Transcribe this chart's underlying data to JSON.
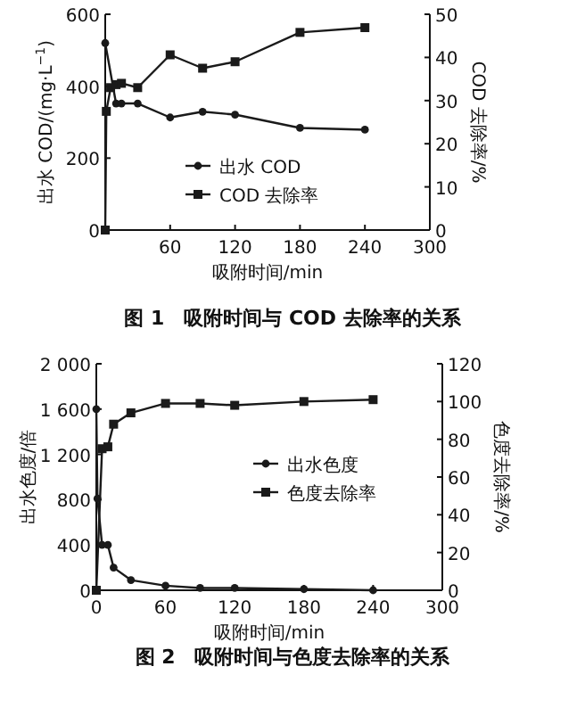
{
  "chart_data": [
    {
      "type": "line",
      "title": "图 1　吸附时间与 COD 去除率的关系",
      "xlabel": "吸附时间/min",
      "ylabel": "出水 COD/(mg·L$^{−1}$)",
      "y2label": "COD 去除率/%",
      "xlim": [
        0,
        300
      ],
      "xticks": [
        60,
        120,
        180,
        240,
        300
      ],
      "ylim": [
        0,
        600
      ],
      "yticks": [
        0,
        200,
        400,
        600
      ],
      "y2lim": [
        0,
        50
      ],
      "y2ticks": [
        0,
        10,
        20,
        30,
        40,
        50
      ],
      "legend": "bottom",
      "grid": false,
      "line_style": "solid",
      "series": [
        {
          "name": "出水 COD",
          "color": "#1a1a1a",
          "marker": "circle",
          "x": [
            0,
            10,
            15,
            30,
            60,
            90,
            120,
            180,
            240
          ],
          "values": [
            520,
            352,
            352,
            352,
            313,
            329,
            321,
            284,
            279
          ]
        },
        {
          "name": "COD 去除率",
          "color": "#1a1a1a",
          "marker": "square",
          "axis": "y2",
          "x": [
            0,
            1,
            5,
            10,
            15,
            30,
            60,
            90,
            120,
            180,
            240
          ],
          "values": [
            0,
            27.5,
            33,
            33.7,
            34,
            33,
            40.6,
            37.5,
            39,
            45.8,
            46.9
          ]
        }
      ]
    },
    {
      "type": "line",
      "title": "图 2　吸附时间与色度去除率的关系",
      "xlabel": "吸附时间/min",
      "ylabel": "出水色度/倍",
      "y2label": "色度去除率/%",
      "xlim": [
        0,
        300
      ],
      "xticks": [
        0,
        60,
        120,
        180,
        240,
        300
      ],
      "ylim": [
        0,
        2000
      ],
      "yticks": [
        0,
        400,
        800,
        {
          "value": 1200,
          "label": "1 200"
        },
        {
          "value": 1600,
          "label": "1 600"
        },
        {
          "value": 2000,
          "label": "2 000"
        }
      ],
      "y2lim": [
        0,
        120
      ],
      "y2ticks": [
        0,
        20,
        40,
        60,
        80,
        100,
        120
      ],
      "legend": "right",
      "grid": false,
      "line_style": "solid",
      "series": [
        {
          "name": "出水色度",
          "color": "#1a1a1a",
          "marker": "circle",
          "x": [
            0,
            1,
            5,
            10,
            15,
            30,
            60,
            90,
            120,
            180,
            240
          ],
          "values": [
            1600,
            810,
            400,
            400,
            200,
            90,
            40,
            20,
            20,
            10,
            0
          ]
        },
        {
          "name": "色度去除率",
          "color": "#1a1a1a",
          "marker": "square",
          "axis": "y2",
          "x": [
            0,
            5,
            10,
            15,
            30,
            60,
            90,
            120,
            180,
            240
          ],
          "values": [
            0,
            75,
            76,
            88,
            94,
            99,
            99,
            98,
            100,
            101
          ]
        }
      ]
    }
  ]
}
